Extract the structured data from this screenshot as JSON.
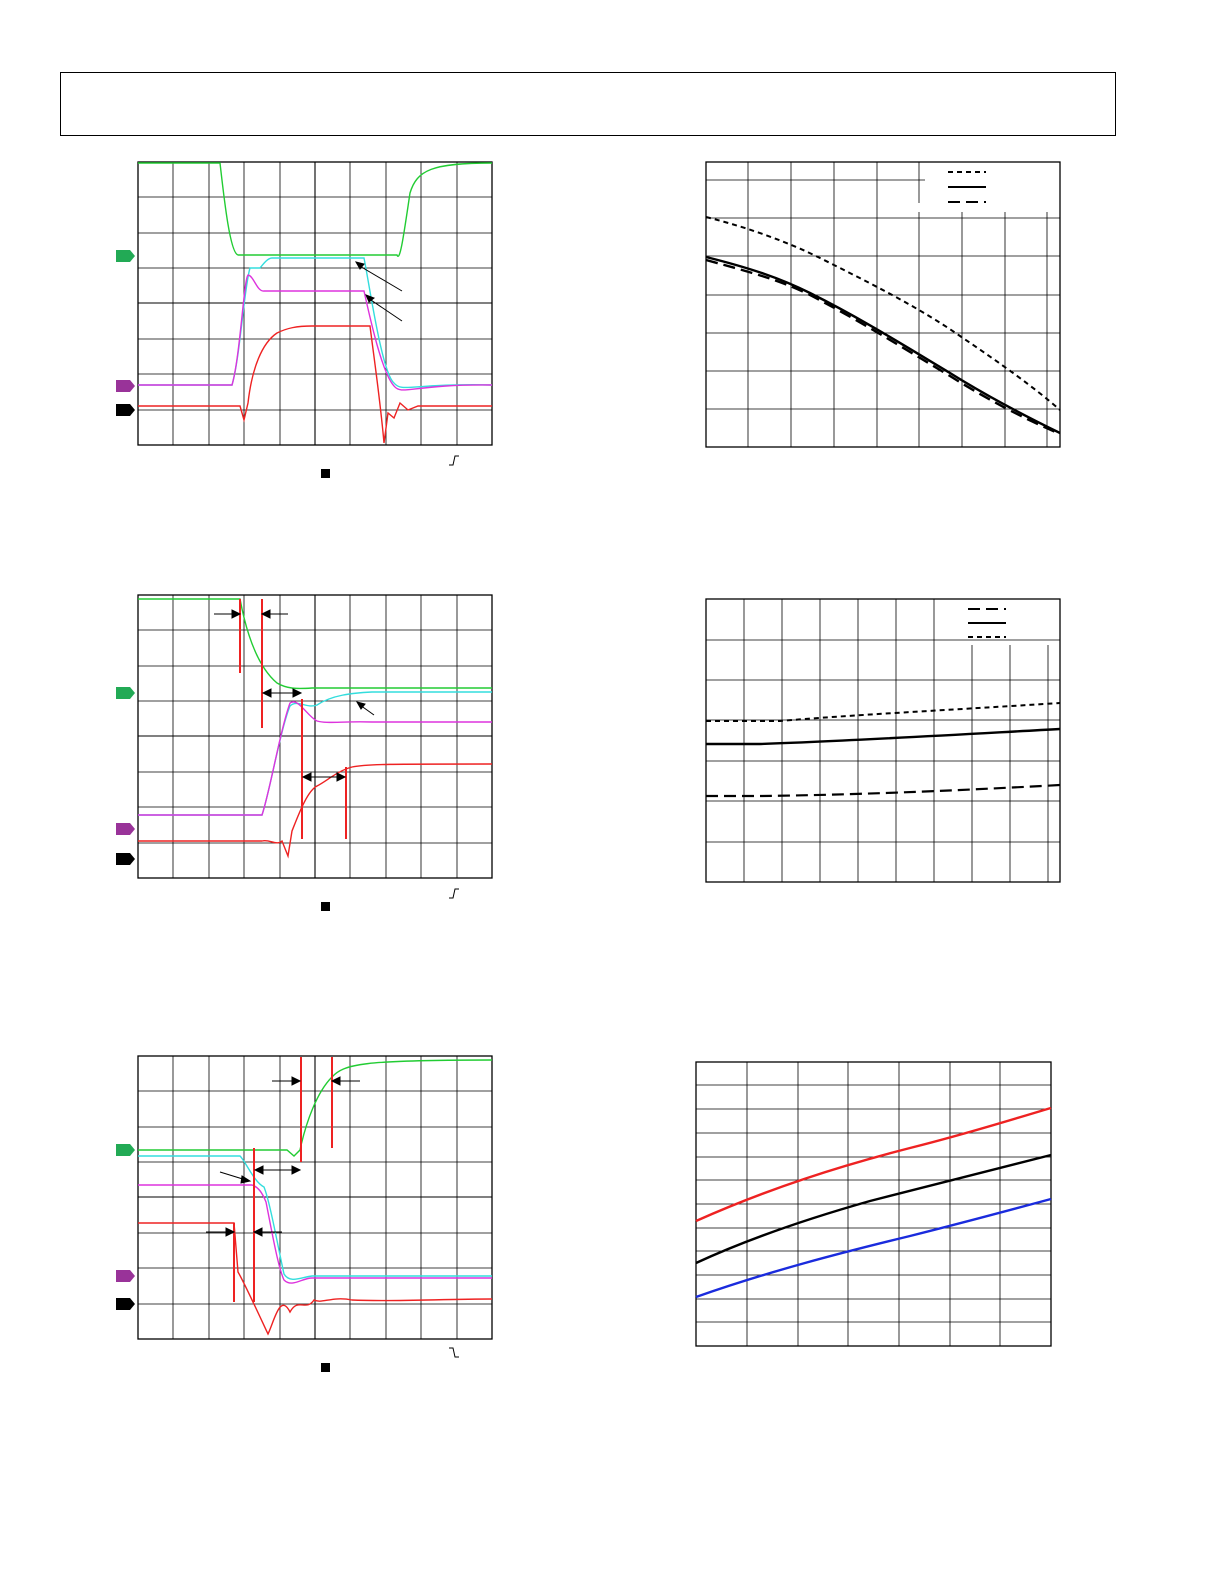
{
  "header": {
    "text": ""
  },
  "colors": {
    "ch1": "#22cc33",
    "ch2": "#33dddd",
    "ch3": "#dd33dd",
    "ch4": "#ee2222",
    "marker_ch1": "#22aa55",
    "marker_ch3": "#993399",
    "marker_ch4": "#000000",
    "grid": "#000000",
    "red_line": "#ee2222",
    "black_line": "#000000",
    "blue_line": "#1a2bdd"
  },
  "scopes": [
    {
      "id": "scope-1",
      "trigger_icon": "rising-edge-icon",
      "ground_marker": "square-marker-icon"
    },
    {
      "id": "scope-2",
      "trigger_icon": "rising-edge-icon",
      "ground_marker": "square-marker-icon"
    },
    {
      "id": "scope-3",
      "trigger_icon": "falling-edge-icon",
      "ground_marker": "square-marker-icon"
    }
  ],
  "chart_data": [
    {
      "type": "line",
      "title": "",
      "xlabel": "",
      "ylabel": "",
      "grid": true,
      "legend_placement": "top-right",
      "legend_entries": 3
    },
    {
      "type": "line",
      "title": "",
      "xlabel": "",
      "ylabel": "",
      "grid": true,
      "legend_placement": "top-right",
      "legend_entries": 3
    },
    {
      "type": "line",
      "title": "",
      "xlabel": "",
      "ylabel": "",
      "grid": true,
      "legend_placement": "none",
      "series_colors": [
        "red",
        "black",
        "blue"
      ]
    }
  ]
}
